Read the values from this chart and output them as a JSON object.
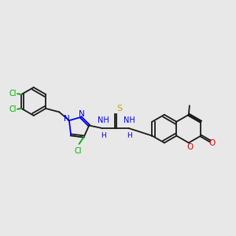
{
  "bg_color": "#e8e8e8",
  "bond_color": "#1a1a1a",
  "n_color": "#0000ee",
  "cl_color": "#00aa00",
  "o_color": "#dd0000",
  "s_color": "#bbaa00",
  "lw": 1.3,
  "figsize": [
    3.0,
    3.0
  ],
  "dpi": 100,
  "xlim": [
    -3.5,
    10.5
  ],
  "ylim": [
    -2.5,
    5.5
  ]
}
